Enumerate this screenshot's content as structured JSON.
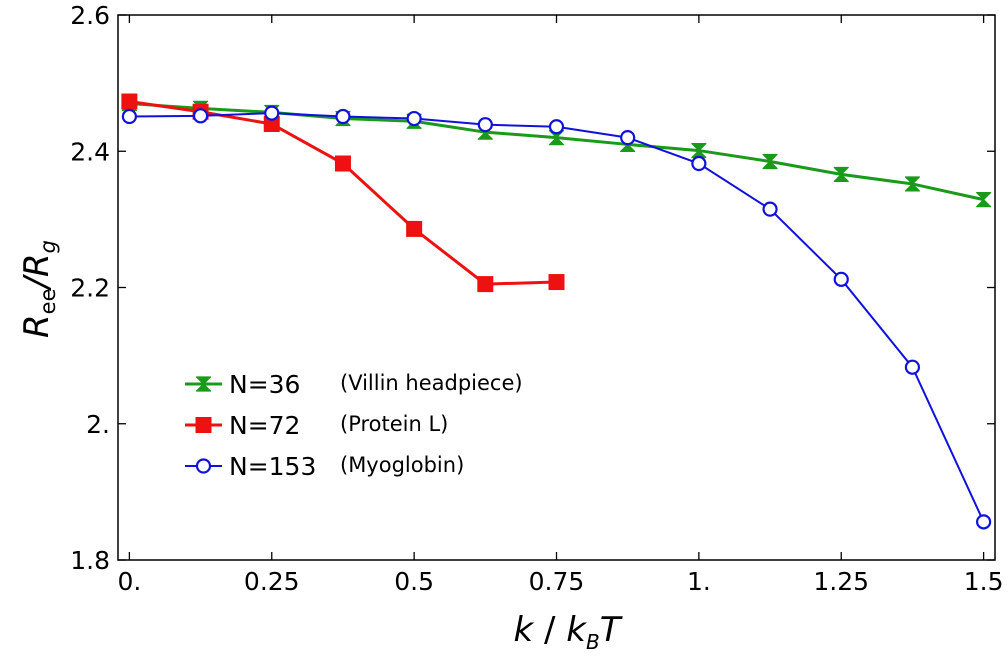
{
  "chart_data": {
    "type": "line",
    "title": "",
    "xlabel": {
      "main": "k",
      "slash": " / ",
      "k2": "k",
      "sub": "B",
      "end": "T"
    },
    "ylabel": {
      "main": "R",
      "sub1": "ee",
      "slash": "/",
      "main2": "R",
      "sub2": "g"
    },
    "xlim": [
      -0.02,
      1.52
    ],
    "ylim": [
      1.8,
      2.6
    ],
    "xticks": [
      0,
      0.25,
      0.5,
      0.75,
      1.0,
      1.25,
      1.5
    ],
    "xtick_labels": [
      "0.",
      "0.25",
      "0.5",
      "0.75",
      "1.",
      "1.25",
      "1.5"
    ],
    "yticks": [
      1.8,
      2.0,
      2.2,
      2.4,
      2.6
    ],
    "ytick_labels": [
      "1.8",
      "2.",
      "2.2",
      "2.4",
      "2.6"
    ],
    "grid": false,
    "legend_position": "lower-left",
    "series": [
      {
        "name": "N=36",
        "note": "(Villin headpiece)",
        "color": "#1a9a1a",
        "marker": "hourglass",
        "x": [
          0,
          0.125,
          0.25,
          0.375,
          0.5,
          0.625,
          0.75,
          0.875,
          1.0,
          1.125,
          1.25,
          1.375,
          1.5
        ],
        "y": [
          2.47,
          2.463,
          2.457,
          2.448,
          2.444,
          2.428,
          2.42,
          2.41,
          2.401,
          2.385,
          2.366,
          2.352,
          2.329
        ]
      },
      {
        "name": "N=72",
        "note": "(Protein L)",
        "color": "#ee1111",
        "marker": "square",
        "x": [
          0,
          0.125,
          0.25,
          0.375,
          0.5,
          0.625,
          0.75
        ],
        "y": [
          2.473,
          2.458,
          2.44,
          2.382,
          2.286,
          2.205,
          2.208
        ]
      },
      {
        "name": "N=153",
        "note": "(Myoglobin)",
        "color": "#1111dd",
        "marker": "circle-open",
        "x": [
          0,
          0.125,
          0.25,
          0.375,
          0.5,
          0.625,
          0.75,
          0.875,
          1.0,
          1.125,
          1.25,
          1.375,
          1.5
        ],
        "y": [
          2.451,
          2.452,
          2.456,
          2.451,
          2.448,
          2.439,
          2.436,
          2.42,
          2.382,
          2.315,
          2.212,
          2.083,
          1.856
        ]
      }
    ]
  }
}
